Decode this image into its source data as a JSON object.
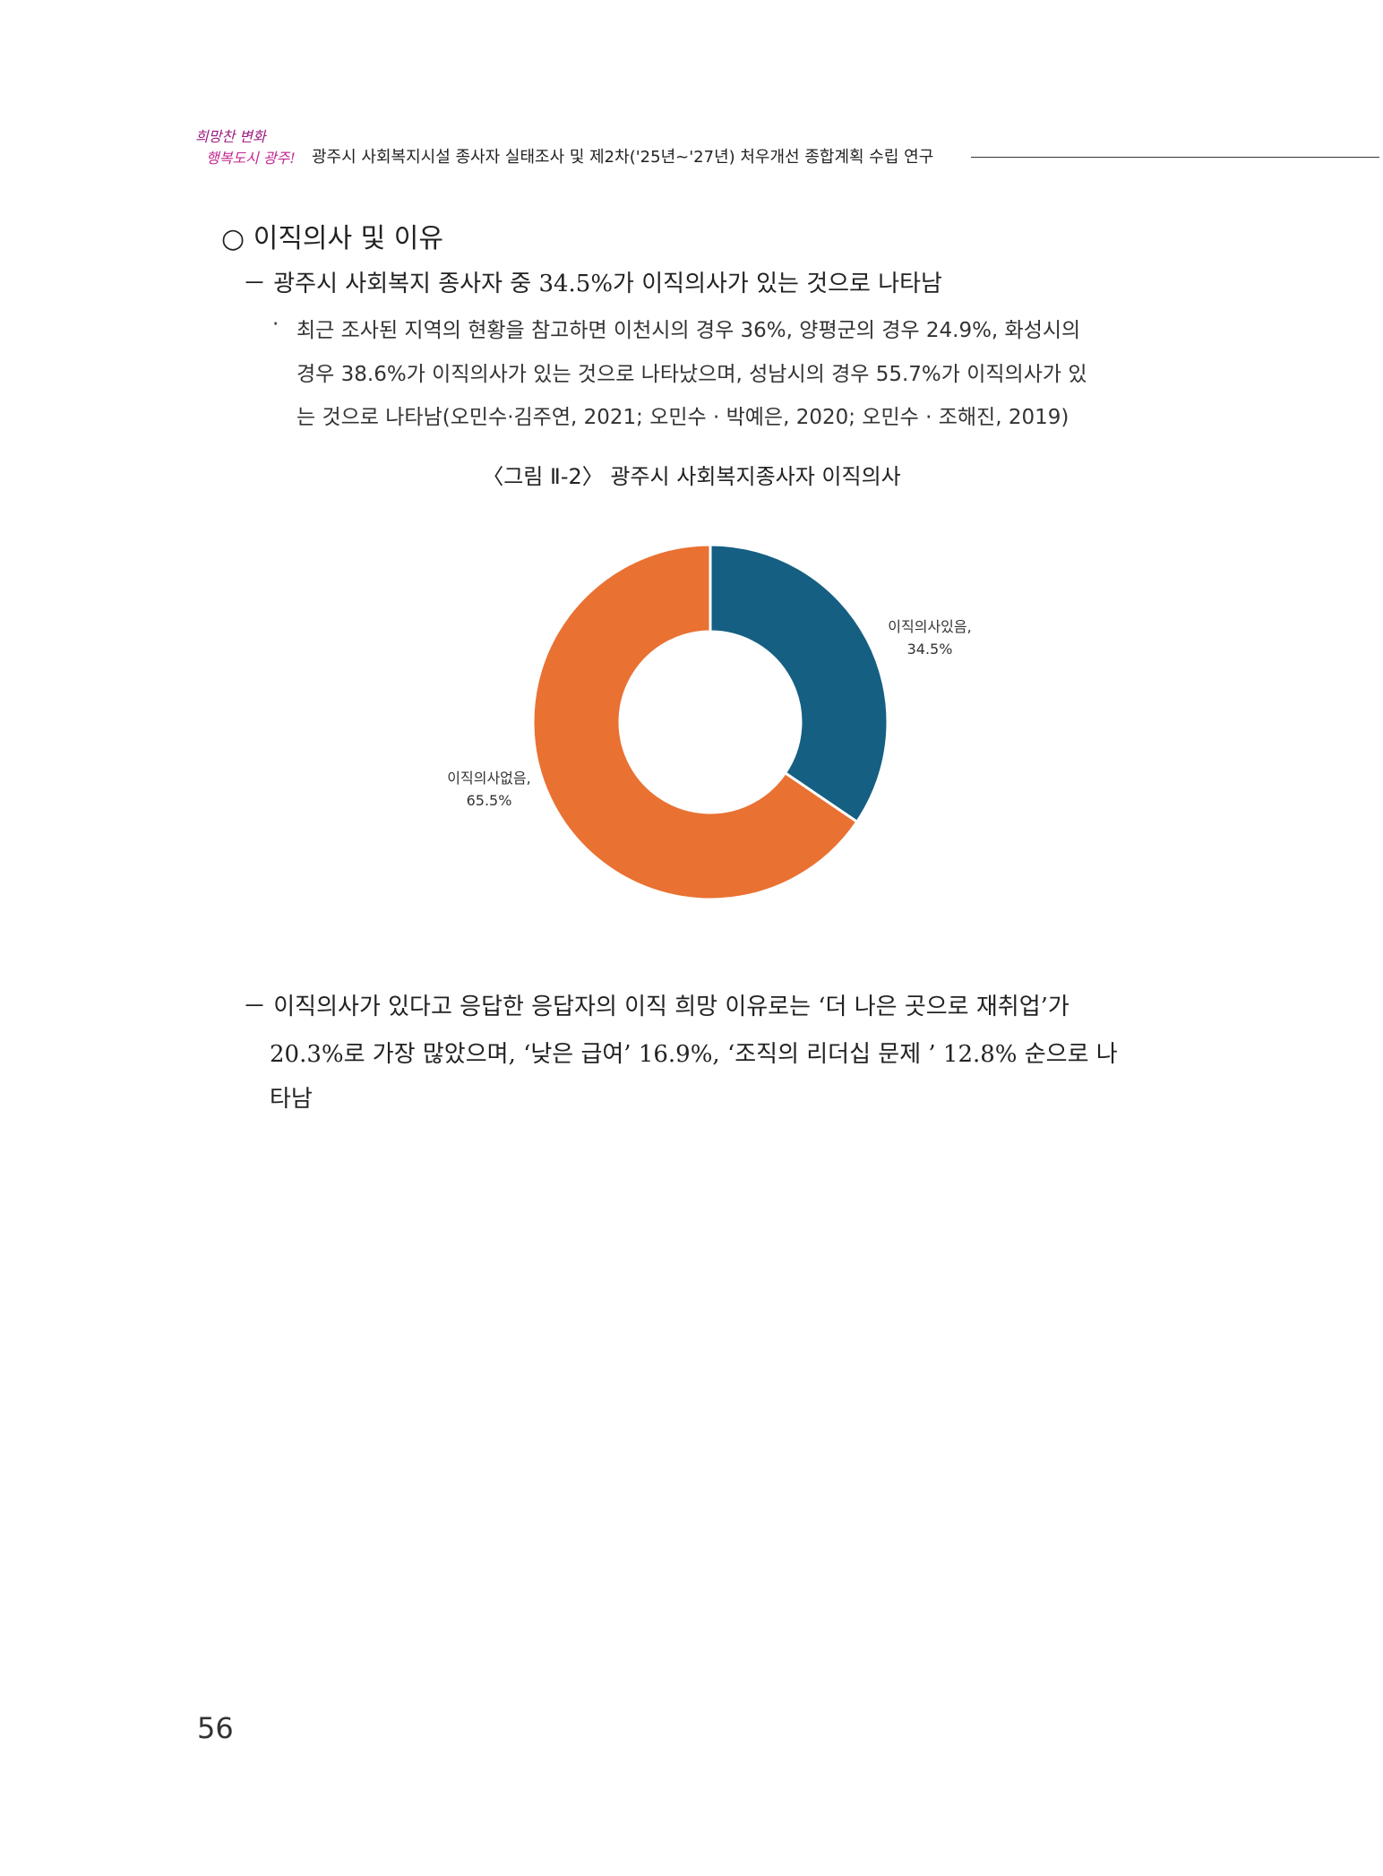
{
  "header": {
    "logo_text": "희망찬 변화 행복도시 광주!",
    "title": "광주시 사회복지시설 종사자 실태조사 및 제2차('25년~'27년) 처우개선 종합계획 수립 연구"
  },
  "section": {
    "heading": "○  이직의사 및 이유",
    "item1": "－ 광주시 사회복지 종사자 중 34.5%가 이직의사가 있는 것으로 나타남",
    "bullet_mark": "·",
    "bullet_lines": [
      "최근 조사된 지역의 현황을 참고하면 이천시의 경우 36%, 양평군의 경우 24.9%, 화성시의",
      "경우 38.6%가 이직의사가 있는 것으로 나타났으며, 성남시의 경우 55.7%가 이직의사가 있",
      "는 것으로 나타남(오민수·김주연, 2021; 오민수 · 박예은, 2020; 오민수 · 조해진, 2019)"
    ],
    "caption": "〈그림 Ⅱ-2〉 광주시 사회복지종사자 이직의사",
    "item2_lines": [
      "－ 이직의사가 있다고 응답한 응답자의 이직 희망 이유로는 ‘더 나은 곳으로 재취업’가",
      "20.3%로 가장 많았으며, ‘낮은 급여’ 16.9%, ‘조직의 리더십 문제 ’ 12.8% 순으로 나",
      "타남"
    ]
  },
  "chart_data": {
    "type": "pie",
    "donut": true,
    "slices": [
      {
        "label": "이직의사있음,",
        "value_label": "34.5%",
        "value": 34.5,
        "color": "#155f82"
      },
      {
        "label": "이직의사없음,",
        "value_label": "65.5%",
        "value": 65.5,
        "color": "#e97132"
      }
    ],
    "start": "12 o'clock, clockwise"
  },
  "page_number": "56"
}
